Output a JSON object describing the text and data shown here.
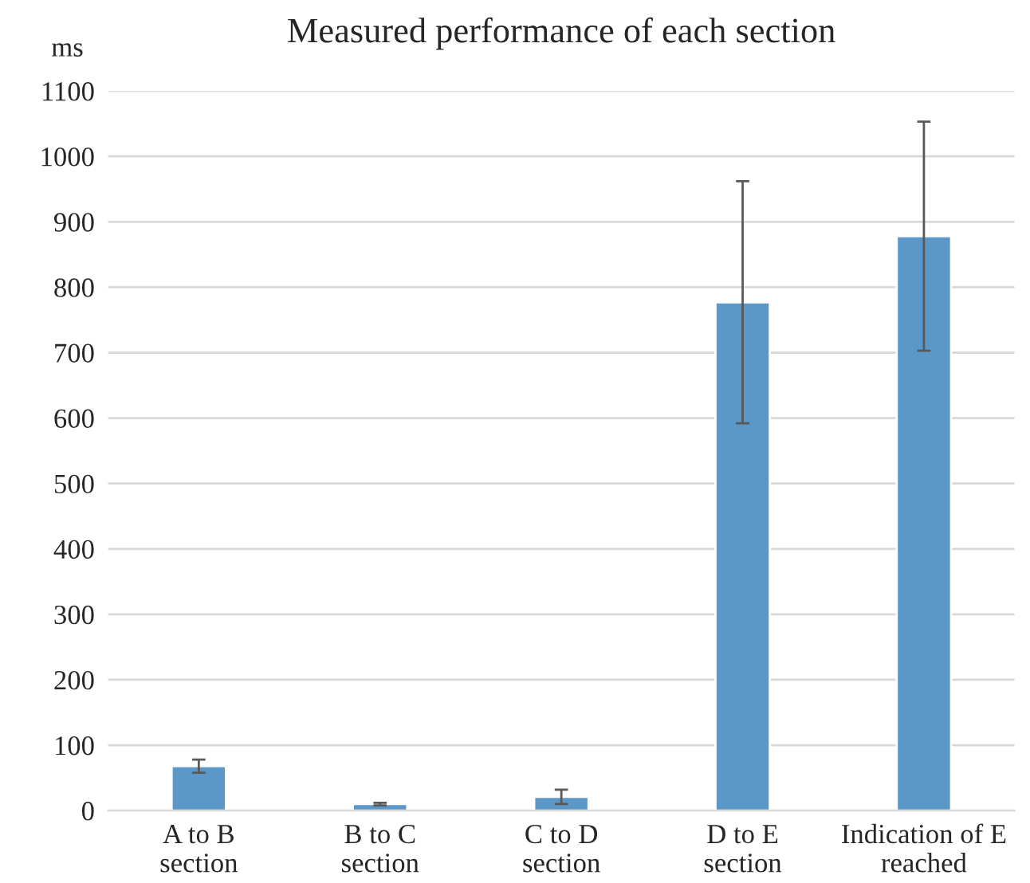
{
  "chart_data": {
    "type": "bar",
    "title": "Measured performance of each section",
    "ylabel": "ms",
    "categories": [
      "A to B\nsection",
      "B to C\nsection",
      "C to D\nsection",
      "D to E\nsection",
      "Indication of E\nreached"
    ],
    "values": [
      68,
      10,
      21,
      777,
      878
    ],
    "errors": [
      10,
      2,
      11,
      185,
      175
    ],
    "color": "#5b97c7",
    "ylim": [
      0,
      1100
    ],
    "yticks": [
      0,
      100,
      200,
      300,
      400,
      500,
      600,
      700,
      800,
      900,
      1000,
      1100
    ],
    "grid": "y"
  }
}
